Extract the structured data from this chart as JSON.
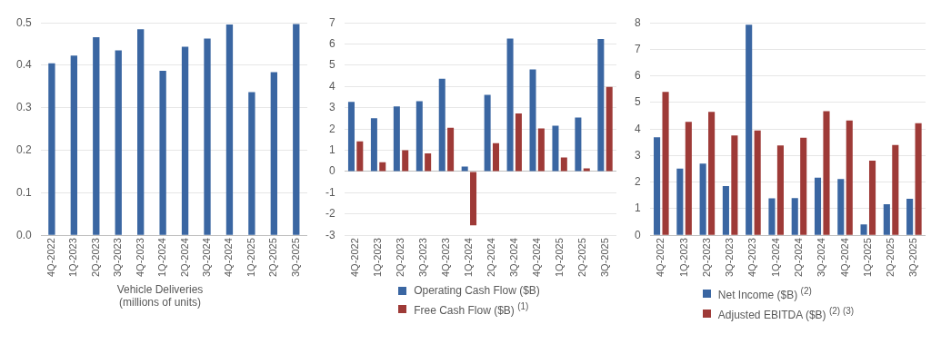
{
  "chart_data": [
    {
      "type": "bar",
      "xlabel": "Vehicle Deliveries\n(millions of units)",
      "categories": [
        "4Q-2022",
        "1Q-2023",
        "2Q-2023",
        "3Q-2023",
        "4Q-2023",
        "1Q-2024",
        "2Q-2024",
        "3Q-2024",
        "4Q-2024",
        "1Q-2025",
        "2Q-2025",
        "3Q-2025"
      ],
      "series": [
        {
          "color": "#3a66a2",
          "values": [
            0.405,
            0.423,
            0.466,
            0.435,
            0.485,
            0.387,
            0.444,
            0.463,
            0.496,
            0.337,
            0.384,
            0.497
          ]
        }
      ],
      "ylim": [
        0,
        0.5
      ],
      "yticks": [
        {
          "value": 0,
          "label": "0.0"
        },
        0.1,
        0.2,
        0.3,
        0.4,
        0.5
      ],
      "grid": "y"
    },
    {
      "type": "bar",
      "categories": [
        "4Q-2022",
        "1Q-2023",
        "2Q-2023",
        "3Q-2023",
        "4Q-2023",
        "1Q-2024",
        "2Q-2024",
        "3Q-2024",
        "4Q-2024",
        "1Q-2025",
        "2Q-2025",
        "3Q-2025"
      ],
      "series": [
        {
          "name": "Operating Cash Flow ($B)",
          "color": "#3a66a2",
          "values": [
            3.28,
            2.51,
            3.07,
            3.31,
            4.37,
            0.24,
            3.61,
            6.26,
            4.81,
            2.16,
            2.54,
            6.24
          ]
        },
        {
          "name": "Free Cash Flow ($B) $^{(1)}$",
          "color": "#9e3a37",
          "values": [
            1.42,
            0.44,
            1.0,
            0.85,
            2.06,
            -2.53,
            1.34,
            2.74,
            2.03,
            0.66,
            0.15,
            3.99
          ]
        }
      ],
      "ylim": [
        -3,
        7
      ],
      "yticks": [
        -3,
        -2,
        -1,
        0,
        1,
        2,
        3,
        4,
        5,
        6,
        7
      ],
      "grid": "y",
      "legend": "bottom"
    },
    {
      "type": "bar",
      "categories": [
        "4Q-2022",
        "1Q-2023",
        "2Q-2023",
        "3Q-2023",
        "4Q-2023",
        "1Q-2024",
        "2Q-2024",
        "3Q-2024",
        "4Q-2024",
        "1Q-2025",
        "2Q-2025",
        "3Q-2025"
      ],
      "series": [
        {
          "name": "Net Income ($B) $^{(2)}$",
          "color": "#3a66a2",
          "values": [
            3.69,
            2.51,
            2.7,
            1.85,
            7.93,
            1.39,
            1.4,
            2.17,
            2.12,
            0.41,
            1.17,
            1.37
          ]
        },
        {
          "name": "Adjusted EBITDA ($B) $^{(2) (3)}$",
          "color": "#9e3a37",
          "values": [
            5.4,
            4.27,
            4.65,
            3.76,
            3.95,
            3.38,
            3.67,
            4.67,
            4.32,
            2.81,
            3.4,
            4.22
          ]
        }
      ],
      "ylim": [
        0,
        8
      ],
      "yticks": [
        0,
        1,
        2,
        3,
        4,
        5,
        6,
        7,
        8
      ],
      "grid": "y",
      "legend": "bottom"
    }
  ]
}
